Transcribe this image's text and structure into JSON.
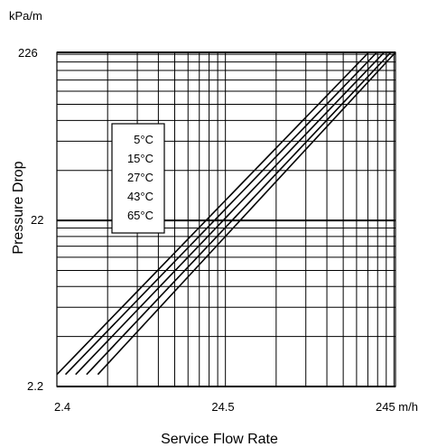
{
  "chart_data": {
    "type": "line",
    "title": "",
    "xlabel": "Service Flow Rate",
    "ylabel": "Pressure Drop",
    "y_unit": "kPa/m",
    "x_unit": "m/h",
    "x_scale": "log",
    "y_scale": "log",
    "xlim": [
      2.4,
      245
    ],
    "ylim": [
      2.2,
      226
    ],
    "x_ticks": [
      2.4,
      24.5,
      245
    ],
    "x_tick_labels": [
      "2.4",
      "24.5",
      "245 m/h"
    ],
    "y_ticks": [
      2.2,
      22,
      226
    ],
    "y_tick_labels": [
      "2.2",
      "22",
      "226"
    ],
    "grid": true,
    "legend_position": "upper-left",
    "legend_items": [
      "5°C",
      "15°C",
      "27°C",
      "43°C",
      "65°C"
    ],
    "series": [
      {
        "name": "5°C",
        "x": [
          2.4,
          170
        ],
        "y": [
          2.6,
          226
        ]
      },
      {
        "name": "15°C",
        "x": [
          2.7,
          190
        ],
        "y": [
          2.6,
          226
        ]
      },
      {
        "name": "27°C",
        "x": [
          3.1,
          210
        ],
        "y": [
          2.6,
          226
        ]
      },
      {
        "name": "43°C",
        "x": [
          3.6,
          230
        ],
        "y": [
          2.6,
          226
        ]
      },
      {
        "name": "65°C",
        "x": [
          4.2,
          245
        ],
        "y": [
          2.6,
          226
        ]
      }
    ]
  }
}
